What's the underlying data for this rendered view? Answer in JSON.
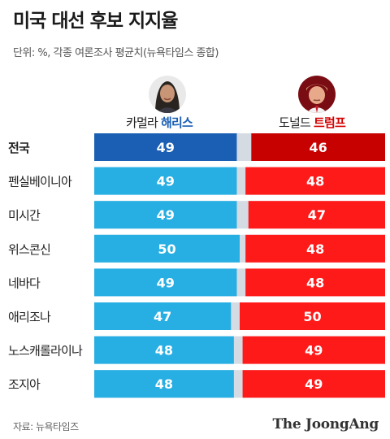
{
  "header": {
    "title": "미국 대선 후보 지지율",
    "subtitle": "단위: %, 각종 여론조사 평균치(뉴욕타임스 종합)"
  },
  "candidates": {
    "harris": {
      "first_name": "카멀라",
      "last_name": "해리스",
      "color": "#1a5fb4"
    },
    "trump": {
      "first_name": "도널드",
      "last_name": "트럼프",
      "color": "#d40000"
    }
  },
  "footer": {
    "source": "자료: 뉴욕타임즈",
    "brand": "The JoongAng"
  },
  "chart_data": {
    "type": "bar",
    "orientation": "horizontal-diverging",
    "categories": [
      "전국",
      "펜실베이니아",
      "미시간",
      "위스콘신",
      "네바다",
      "애리조나",
      "노스캐롤라이나",
      "조지아"
    ],
    "series": [
      {
        "name": "카멀라 해리스",
        "values": [
          49,
          49,
          49,
          50,
          49,
          47,
          48,
          48
        ]
      },
      {
        "name": "도널드 트럼프",
        "values": [
          46,
          48,
          47,
          48,
          48,
          50,
          49,
          49
        ]
      }
    ],
    "xlim": [
      0,
      100
    ],
    "colors": {
      "harris_national": "#1a5fb4",
      "harris_state": "#27aee3",
      "trump_national": "#c70000",
      "trump_state": "#ff1a1a",
      "remainder": "#d4dbe2"
    }
  }
}
